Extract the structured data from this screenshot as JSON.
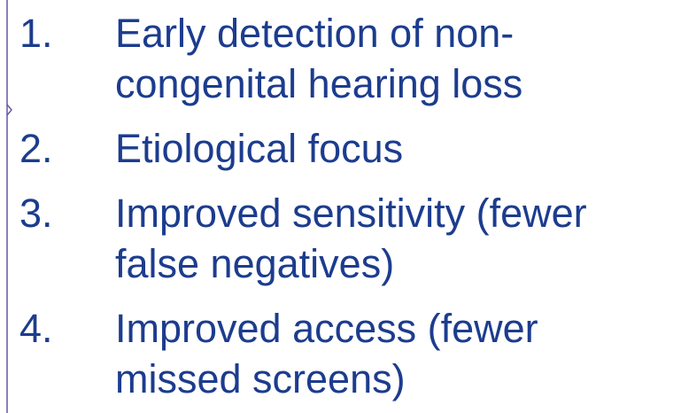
{
  "list": {
    "items": [
      {
        "number": "1.",
        "lines": [
          "Early detection of non-",
          "congenital hearing loss"
        ]
      },
      {
        "number": "2.",
        "lines": [
          "Etiological focus"
        ]
      },
      {
        "number": "3.",
        "lines": [
          "Improved sensitivity (fewer",
          "false negatives)"
        ]
      },
      {
        "number": "4.",
        "lines": [
          "Improved access (fewer",
          "missed screens)"
        ]
      }
    ]
  }
}
